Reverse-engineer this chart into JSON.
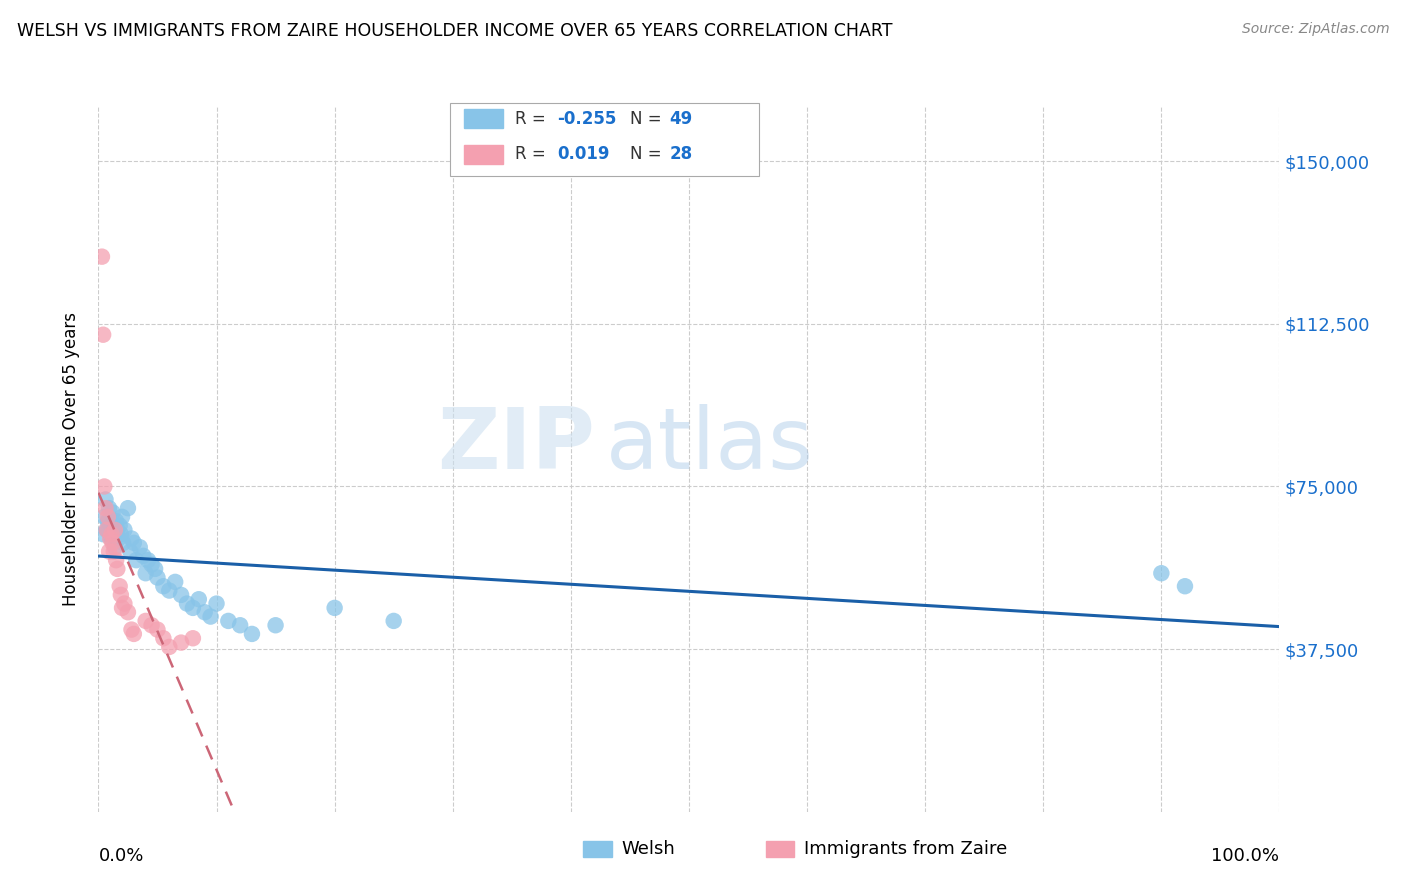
{
  "title": "WELSH VS IMMIGRANTS FROM ZAIRE HOUSEHOLDER INCOME OVER 65 YEARS CORRELATION CHART",
  "source": "Source: ZipAtlas.com",
  "ylabel": "Householder Income Over 65 years",
  "ytick_labels": [
    "$37,500",
    "$75,000",
    "$112,500",
    "$150,000"
  ],
  "ytick_values": [
    37500,
    75000,
    112500,
    150000
  ],
  "ymin": 0,
  "ymax": 162500,
  "xmin": 0.0,
  "xmax": 1.0,
  "r1": "-0.255",
  "n1": "49",
  "r2": "0.019",
  "n2": "28",
  "color_welsh": "#88c4e8",
  "color_zaire": "#f4a0b0",
  "color_line_welsh": "#1a5fa8",
  "color_line_zaire": "#cc6677",
  "legend_label1": "Welsh",
  "legend_label2": "Immigrants from Zaire",
  "welsh_x": [
    0.004,
    0.005,
    0.006,
    0.007,
    0.008,
    0.009,
    0.01,
    0.011,
    0.012,
    0.013,
    0.014,
    0.015,
    0.016,
    0.017,
    0.018,
    0.019,
    0.02,
    0.021,
    0.022,
    0.025,
    0.027,
    0.028,
    0.03,
    0.032,
    0.035,
    0.038,
    0.04,
    0.042,
    0.045,
    0.048,
    0.05,
    0.055,
    0.06,
    0.065,
    0.07,
    0.075,
    0.08,
    0.085,
    0.09,
    0.095,
    0.1,
    0.11,
    0.12,
    0.13,
    0.15,
    0.2,
    0.25,
    0.9,
    0.92
  ],
  "welsh_y": [
    64000,
    68000,
    72000,
    65000,
    67000,
    70000,
    66000,
    63000,
    69000,
    64000,
    61000,
    67000,
    65000,
    63000,
    66000,
    64000,
    68000,
    62000,
    65000,
    70000,
    60000,
    63000,
    62000,
    58000,
    61000,
    59000,
    55000,
    58000,
    57000,
    56000,
    54000,
    52000,
    51000,
    53000,
    50000,
    48000,
    47000,
    49000,
    46000,
    45000,
    48000,
    44000,
    43000,
    41000,
    43000,
    47000,
    44000,
    55000,
    52000
  ],
  "zaire_x": [
    0.003,
    0.004,
    0.005,
    0.006,
    0.007,
    0.008,
    0.009,
    0.01,
    0.011,
    0.012,
    0.013,
    0.014,
    0.015,
    0.016,
    0.018,
    0.019,
    0.02,
    0.022,
    0.025,
    0.028,
    0.03,
    0.04,
    0.045,
    0.05,
    0.055,
    0.06,
    0.07,
    0.08
  ],
  "zaire_y": [
    128000,
    110000,
    75000,
    70000,
    65000,
    68000,
    60000,
    63000,
    64000,
    62000,
    60000,
    65000,
    58000,
    56000,
    52000,
    50000,
    47000,
    48000,
    46000,
    42000,
    41000,
    44000,
    43000,
    42000,
    40000,
    38000,
    39000,
    40000
  ],
  "watermark_zip": "ZIP",
  "watermark_atlas": "atlas"
}
